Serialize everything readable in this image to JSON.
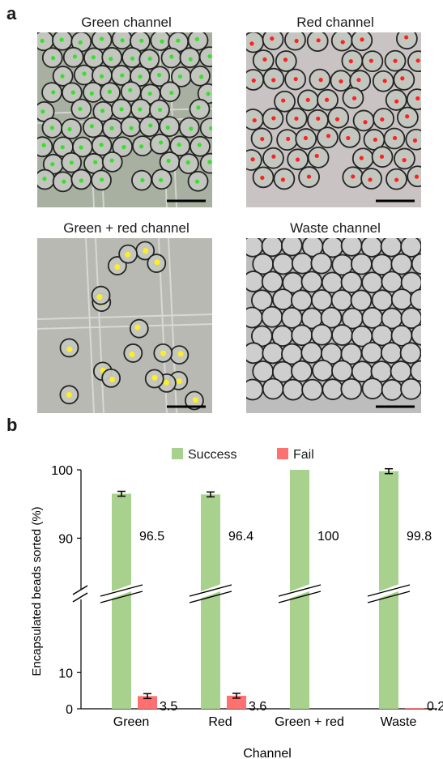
{
  "figure": {
    "panel_a_label": "a",
    "panel_b_label": "b",
    "panels": [
      {
        "title": "Green channel",
        "dot_fill": "#36e12b",
        "background": "#a8b0a2"
      },
      {
        "title": "Red channel",
        "dot_fill": "#ff2020",
        "background": "#c9c3c3"
      },
      {
        "title": "Green + red channel",
        "dot_fill": "#ffee22",
        "background": "#b9b9b3"
      },
      {
        "title": "Waste channel",
        "dot_fill": "none",
        "background": "#bdbdbd"
      }
    ]
  },
  "chart_data": {
    "type": "bar",
    "categories": [
      "Green",
      "Red",
      "Green + red",
      "Waste"
    ],
    "series": [
      {
        "name": "Success",
        "values": [
          96.5,
          96.4,
          100,
          99.8
        ],
        "color": "#a9d18e"
      },
      {
        "name": "Fail",
        "values": [
          3.5,
          3.6,
          null,
          0.2
        ],
        "color": "#ff7070"
      }
    ],
    "value_labels": {
      "Success": [
        "96.5",
        "96.4",
        "100",
        "99.8"
      ],
      "Fail": [
        "3.5",
        "3.6",
        "",
        "0.2"
      ]
    },
    "xlabel": "Channel",
    "ylabel": "Encapsulated beads sorted (%)",
    "y_ticks_lower": [
      0,
      10
    ],
    "y_ticks_upper": [
      90,
      100
    ],
    "ylim_lower": [
      0,
      19
    ],
    "ylim_upper": [
      84,
      100
    ],
    "broken_axis": true,
    "error_bars": true,
    "legend_position": "top"
  }
}
